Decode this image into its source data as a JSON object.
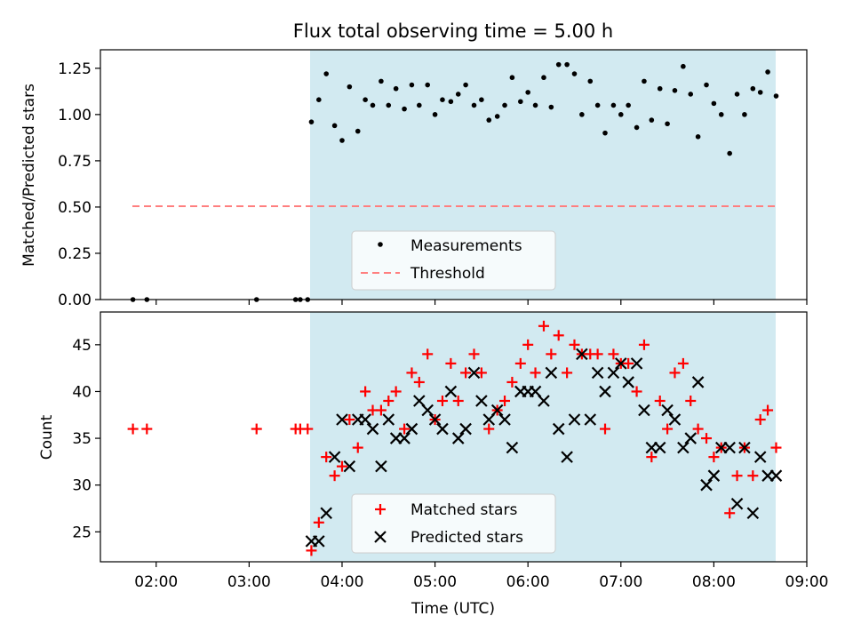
{
  "chart_data": {
    "title": "Flux total observing time = 5.00 h",
    "xlabel": "Time (UTC)",
    "x_unit": "hours UTC",
    "xlim": [
      1.4,
      9.0
    ],
    "x_ticks": [
      {
        "value": 2,
        "label": "02:00"
      },
      {
        "value": 3,
        "label": "03:00"
      },
      {
        "value": 4,
        "label": "04:00"
      },
      {
        "value": 5,
        "label": "05:00"
      },
      {
        "value": 6,
        "label": "06:00"
      },
      {
        "value": 7,
        "label": "07:00"
      },
      {
        "value": 8,
        "label": "08:00"
      },
      {
        "value": 9,
        "label": "09:00"
      }
    ],
    "shaded_interval": [
      3.67,
      8.67
    ],
    "colors": {
      "shade": "#add8e6",
      "measurement": "#000000",
      "threshold": "#ff7f7f",
      "matched": "#ff0000",
      "predicted": "#000000"
    },
    "panels": [
      {
        "type": "scatter",
        "ylabel": "Matched/Predicted stars",
        "ylim": [
          0,
          1.35
        ],
        "y_ticks": [
          "0.00",
          "0.25",
          "0.50",
          "0.75",
          "1.00",
          "1.25"
        ],
        "threshold": {
          "y": 0.5,
          "x_range": [
            1.75,
            8.67
          ],
          "style": "dashed"
        },
        "legend": {
          "placement": "lower center",
          "entries": [
            "Measurements",
            "Threshold"
          ]
        },
        "series": [
          {
            "name": "Measurements",
            "marker": "dot",
            "x": [
              1.75,
              1.9,
              3.08,
              3.5,
              3.55,
              3.63,
              3.67,
              3.75,
              3.83,
              3.92,
              4.0,
              4.08,
              4.17,
              4.25,
              4.33,
              4.42,
              4.5,
              4.58,
              4.67,
              4.75,
              4.83,
              4.92,
              5.0,
              5.08,
              5.17,
              5.25,
              5.33,
              5.42,
              5.5,
              5.58,
              5.67,
              5.75,
              5.83,
              5.92,
              6.0,
              6.08,
              6.17,
              6.25,
              6.33,
              6.42,
              6.5,
              6.58,
              6.67,
              6.75,
              6.83,
              6.92,
              7.0,
              7.08,
              7.17,
              7.25,
              7.33,
              7.42,
              7.5,
              7.58,
              7.67,
              7.75,
              7.83,
              7.92,
              8.0,
              8.08,
              8.17,
              8.25,
              8.33,
              8.42,
              8.5,
              8.58,
              8.67
            ],
            "y": [
              0,
              0,
              0,
              0,
              0,
              0,
              0.96,
              1.08,
              1.22,
              0.94,
              0.86,
              1.15,
              0.91,
              1.08,
              1.05,
              1.18,
              1.05,
              1.14,
              1.03,
              1.16,
              1.05,
              1.16,
              1.0,
              1.08,
              1.07,
              1.11,
              1.16,
              1.05,
              1.08,
              0.97,
              0.99,
              1.05,
              1.2,
              1.07,
              1.12,
              1.05,
              1.2,
              1.04,
              1.27,
              1.27,
              1.22,
              1.0,
              1.18,
              1.05,
              0.9,
              1.05,
              1.0,
              1.05,
              0.93,
              1.18,
              0.97,
              1.14,
              0.95,
              1.13,
              1.26,
              1.11,
              0.88,
              1.16,
              1.06,
              1.0,
              0.79,
              1.11,
              1.0,
              1.14,
              1.12,
              1.23,
              1.1
            ]
          }
        ]
      },
      {
        "type": "scatter",
        "ylabel": "Count",
        "ylim": [
          21.8,
          48.5
        ],
        "y_ticks": [
          "25",
          "30",
          "35",
          "40",
          "45"
        ],
        "legend": {
          "placement": "lower center",
          "entries": [
            "Matched stars",
            "Predicted stars"
          ]
        },
        "series": [
          {
            "name": "Matched stars",
            "marker": "plus",
            "x": [
              1.75,
              1.9,
              3.08,
              3.5,
              3.55,
              3.63,
              3.67,
              3.75,
              3.83,
              3.92,
              4.0,
              4.08,
              4.17,
              4.25,
              4.33,
              4.42,
              4.5,
              4.58,
              4.67,
              4.75,
              4.83,
              4.92,
              5.0,
              5.08,
              5.17,
              5.25,
              5.33,
              5.42,
              5.5,
              5.58,
              5.67,
              5.75,
              5.83,
              5.92,
              6.0,
              6.08,
              6.17,
              6.25,
              6.33,
              6.42,
              6.5,
              6.58,
              6.67,
              6.75,
              6.83,
              6.92,
              7.0,
              7.08,
              7.17,
              7.25,
              7.33,
              7.42,
              7.5,
              7.58,
              7.67,
              7.75,
              7.83,
              7.92,
              8.0,
              8.08,
              8.17,
              8.25,
              8.33,
              8.42,
              8.5,
              8.58,
              8.67
            ],
            "y": [
              36,
              36,
              36,
              36,
              36,
              36,
              23,
              26,
              33,
              31,
              32,
              37,
              34,
              40,
              38,
              38,
              39,
              40,
              36,
              42,
              41,
              44,
              37,
              39,
              43,
              39,
              42,
              44,
              42,
              36,
              38,
              39,
              41,
              43,
              45,
              42,
              47,
              44,
              46,
              42,
              45,
              44,
              44,
              44,
              36,
              44,
              43,
              43,
              40,
              45,
              33,
              39,
              36,
              42,
              43,
              39,
              36,
              35,
              33,
              34,
              27,
              31,
              34,
              31,
              37,
              38,
              34
            ]
          },
          {
            "name": "Predicted stars",
            "marker": "x",
            "x": [
              3.67,
              3.75,
              3.83,
              3.92,
              4.0,
              4.08,
              4.17,
              4.25,
              4.33,
              4.42,
              4.5,
              4.58,
              4.67,
              4.75,
              4.83,
              4.92,
              5.0,
              5.08,
              5.17,
              5.25,
              5.33,
              5.42,
              5.5,
              5.58,
              5.67,
              5.75,
              5.83,
              5.92,
              6.0,
              6.08,
              6.17,
              6.25,
              6.33,
              6.42,
              6.5,
              6.58,
              6.67,
              6.75,
              6.83,
              6.92,
              7.0,
              7.08,
              7.17,
              7.25,
              7.33,
              7.42,
              7.5,
              7.58,
              7.67,
              7.75,
              7.83,
              7.92,
              8.0,
              8.08,
              8.17,
              8.25,
              8.33,
              8.42,
              8.5,
              8.58,
              8.67
            ],
            "y": [
              24,
              24,
              27,
              33,
              37,
              32,
              37,
              37,
              36,
              32,
              37,
              35,
              35,
              36,
              39,
              38,
              37,
              36,
              40,
              35,
              36,
              42,
              39,
              37,
              38,
              37,
              34,
              40,
              40,
              40,
              39,
              42,
              36,
              33,
              37,
              44,
              37,
              42,
              40,
              42,
              43,
              41,
              43,
              38,
              34,
              34,
              38,
              37,
              34,
              35,
              41,
              30,
              31,
              34,
              34,
              28,
              34,
              27,
              33,
              31,
              31
            ]
          }
        ]
      }
    ]
  }
}
